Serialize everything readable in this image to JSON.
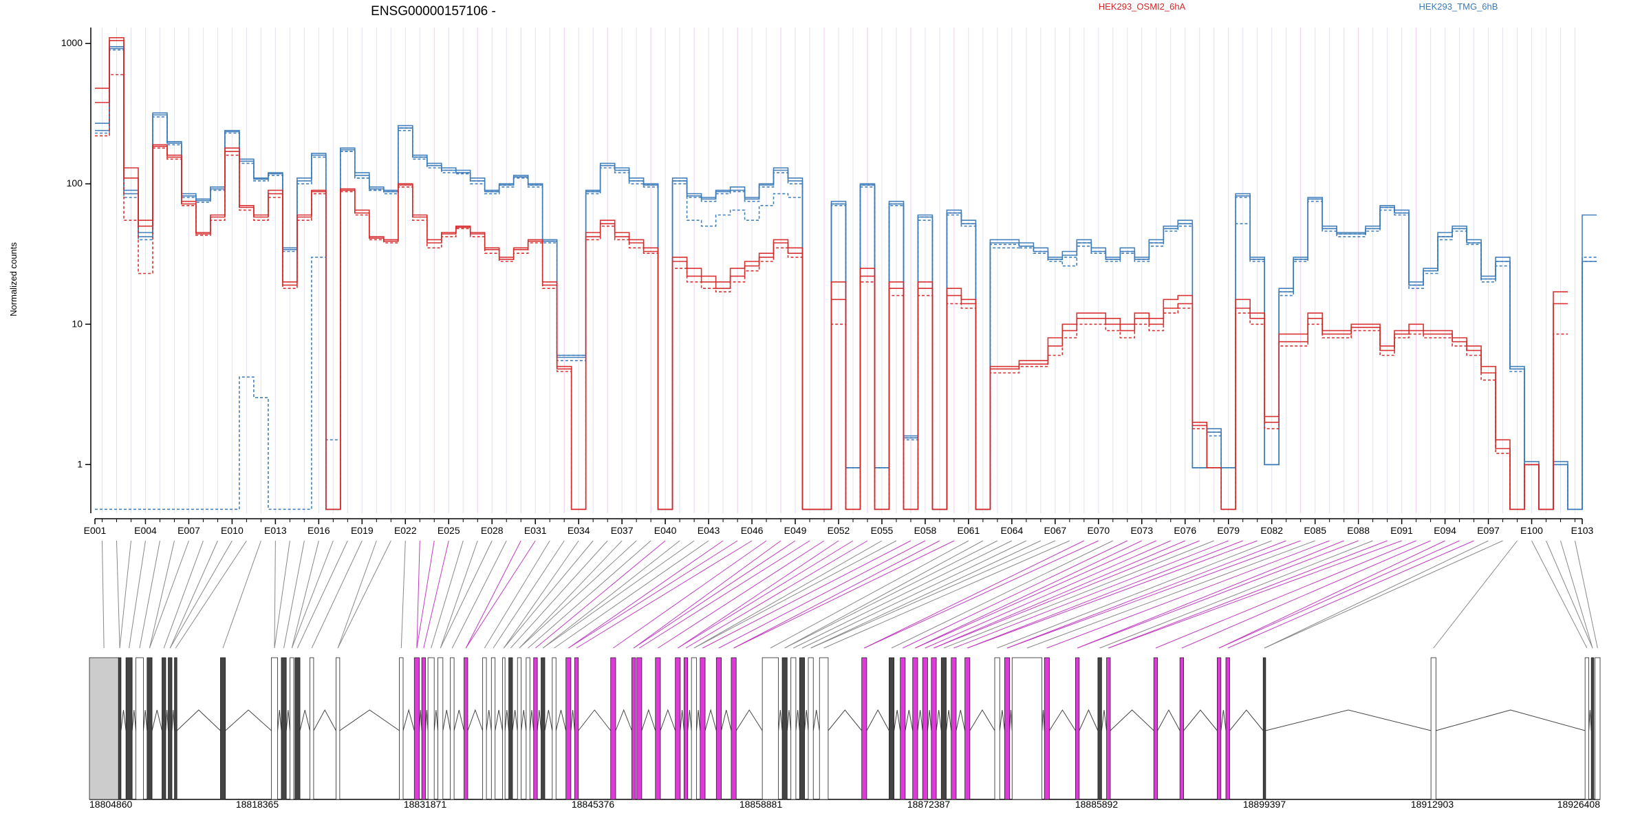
{
  "chart_data": {
    "type": "line",
    "title": "ENSG00000157106 -",
    "ylabel": "Normalized counts",
    "y_scale": "log",
    "ylim": [
      0.45,
      1300
    ],
    "y_ticks": [
      1,
      10,
      100,
      1000
    ],
    "y_tick_labels": [
      "1",
      "10",
      "100",
      "1000"
    ],
    "x_categories_count": 103,
    "x_tick_labels": [
      "E001",
      "E004",
      "E007",
      "E010",
      "E013",
      "E016",
      "E019",
      "E022",
      "E025",
      "E028",
      "E031",
      "E034",
      "E037",
      "E040",
      "E043",
      "E046",
      "E049",
      "E052",
      "E055",
      "E058",
      "E061",
      "E064",
      "E067",
      "E070",
      "E073",
      "E076",
      "E079",
      "E082",
      "E085",
      "E088",
      "E091",
      "E094",
      "E097",
      "E100",
      "E103"
    ],
    "x_tick_exon_index": [
      1,
      4,
      7,
      10,
      13,
      16,
      19,
      22,
      25,
      28,
      31,
      34,
      37,
      40,
      43,
      46,
      49,
      52,
      55,
      58,
      61,
      64,
      67,
      70,
      73,
      76,
      79,
      82,
      85,
      88,
      91,
      94,
      97,
      100,
      103
    ],
    "legend": [
      {
        "name": "HEK293_OSMI2_6hA",
        "color": "#d62728"
      },
      {
        "name": "HEK293_TMG_6hB",
        "color": "#3a7ab8"
      }
    ],
    "series": [
      {
        "group": "HEK293_TMG_6hB",
        "color": "#3a7ab8",
        "values": [
          270,
          950,
          90,
          45,
          320,
          200,
          85,
          78,
          95,
          240,
          150,
          110,
          120,
          35,
          110,
          165,
          0.48,
          180,
          120,
          95,
          90,
          260,
          160,
          140,
          130,
          125,
          110,
          90,
          100,
          115,
          100,
          40,
          6,
          6,
          90,
          140,
          130,
          110,
          100,
          0.48,
          110,
          85,
          80,
          90,
          95,
          80,
          100,
          130,
          110,
          0.48,
          0.48,
          75,
          0.95,
          100,
          0.95,
          75,
          1.6,
          60,
          0.48,
          65,
          55,
          0.48,
          40,
          40,
          38,
          35,
          30,
          33,
          40,
          35,
          30,
          35,
          30,
          40,
          50,
          55,
          0.95,
          1.8,
          0.95,
          85,
          30,
          1.0,
          18,
          30,
          80,
          50,
          45,
          45,
          50,
          70,
          65,
          20,
          25,
          45,
          50,
          40,
          22,
          30,
          5,
          1.05,
          0.48,
          1.05,
          0.48,
          60
        ]
      },
      {
        "group": "HEK293_TMG_6hB",
        "color": "#3a7ab8",
        "values": [
          230,
          900,
          80,
          40,
          300,
          190,
          80,
          74,
          90,
          230,
          140,
          105,
          115,
          33,
          100,
          155,
          0.48,
          170,
          110,
          90,
          85,
          240,
          150,
          130,
          120,
          118,
          100,
          85,
          95,
          110,
          95,
          38,
          5.5,
          5.5,
          85,
          130,
          120,
          100,
          95,
          0.48,
          100,
          80,
          75,
          85,
          88,
          75,
          95,
          120,
          100,
          0.48,
          0.48,
          70,
          0.95,
          95,
          0.95,
          70,
          1.5,
          55,
          0.48,
          60,
          50,
          0.48,
          37,
          37,
          35,
          32,
          28,
          30,
          36,
          32,
          28,
          32,
          28,
          36,
          46,
          50,
          0.95,
          1.6,
          0.95,
          80,
          28,
          1.0,
          16,
          28,
          75,
          46,
          42,
          42,
          46,
          65,
          60,
          18,
          23,
          40,
          46,
          37,
          20,
          26,
          4.6,
          1.0,
          0.48,
          1.0,
          0.48,
          30
        ]
      },
      {
        "group": "HEK293_TMG_6hB",
        "color": "#3a7ab8",
        "values": [
          240,
          920,
          85,
          42,
          310,
          195,
          82,
          76,
          92,
          235,
          145,
          108,
          118,
          34,
          105,
          160,
          0.48,
          175,
          115,
          92,
          88,
          250,
          155,
          135,
          125,
          120,
          105,
          88,
          98,
          112,
          98,
          39,
          5.8,
          5.8,
          88,
          135,
          125,
          105,
          98,
          0.48,
          105,
          82,
          78,
          88,
          90,
          78,
          98,
          125,
          105,
          0.48,
          0.48,
          72,
          0.95,
          98,
          0.95,
          72,
          1.55,
          58,
          0.48,
          62,
          52,
          0.48,
          38,
          38,
          36,
          33,
          29,
          31,
          38,
          33,
          29,
          33,
          29,
          38,
          48,
          52,
          0.95,
          1.7,
          0.95,
          82,
          29,
          1.0,
          17,
          29,
          78,
          48,
          44,
          44,
          48,
          68,
          62,
          19,
          24,
          42,
          48,
          38,
          21,
          28,
          4.8,
          1.0,
          0.48,
          1.0,
          0.48,
          28
        ]
      },
      {
        "group": "HEK293_TMG_6hB",
        "color": "#3a7ab8",
        "values": [
          0.48,
          0.48,
          0.48,
          0.48,
          0.48,
          0.48,
          0.48,
          0.48,
          0.48,
          0.48,
          4.2,
          3.0,
          0.48,
          0.48,
          0.48,
          30,
          1.5,
          170,
          110,
          90,
          88,
          250,
          155,
          135,
          125,
          120,
          105,
          88,
          98,
          112,
          98,
          39,
          6,
          6,
          88,
          135,
          125,
          105,
          98,
          0.48,
          105,
          55,
          50,
          60,
          65,
          55,
          70,
          85,
          80,
          0.48,
          0.48,
          72,
          0.95,
          98,
          0.95,
          72,
          1.55,
          58,
          0.48,
          62,
          52,
          0.48,
          35,
          35,
          36,
          33,
          29,
          26,
          38,
          33,
          29,
          33,
          29,
          38,
          48,
          52,
          0.95,
          1.7,
          0.48,
          52,
          29,
          1.0,
          17,
          29,
          78,
          48,
          44,
          44,
          48,
          68,
          62,
          19,
          24,
          42,
          48,
          38,
          21,
          28,
          4.8,
          1.0,
          0.48,
          1.0,
          0.48,
          28
        ]
      },
      {
        "group": "HEK293_OSMI2_6hA",
        "color": "#d62728",
        "values": [
          480,
          1100,
          130,
          55,
          190,
          160,
          75,
          45,
          60,
          180,
          70,
          60,
          90,
          20,
          60,
          90,
          0.48,
          92,
          65,
          42,
          40,
          100,
          60,
          40,
          45,
          50,
          45,
          35,
          30,
          35,
          40,
          20,
          5,
          0.48,
          45,
          55,
          45,
          40,
          35,
          0.48,
          30,
          25,
          22,
          20,
          25,
          28,
          32,
          40,
          35,
          0.48,
          0.48,
          20,
          0.48,
          25,
          0.48,
          20,
          0.48,
          20,
          0.48,
          18,
          15,
          0.48,
          5,
          5,
          5.5,
          5.5,
          8,
          10,
          12,
          12,
          11,
          10,
          12,
          11,
          15,
          16,
          2,
          0.95,
          0.48,
          15,
          12,
          2.2,
          8.5,
          8.5,
          12,
          9,
          9,
          10,
          10,
          7,
          9,
          10,
          9,
          9,
          8,
          7,
          5,
          1.5,
          0.48,
          1.0,
          0.48,
          17
        ]
      },
      {
        "group": "HEK293_OSMI2_6hA",
        "color": "#d62728",
        "values": [
          220,
          600,
          55,
          23,
          180,
          150,
          70,
          43,
          55,
          160,
          65,
          55,
          80,
          18,
          55,
          85,
          0.48,
          88,
          60,
          40,
          38,
          95,
          55,
          35,
          42,
          48,
          42,
          32,
          28,
          32,
          38,
          18,
          4.6,
          0.48,
          40,
          50,
          40,
          35,
          32,
          0.48,
          25,
          20,
          18,
          17,
          20,
          24,
          28,
          35,
          30,
          0.48,
          0.48,
          10,
          0.48,
          20,
          0.48,
          16,
          0.48,
          16,
          0.48,
          14,
          13,
          0.48,
          4.5,
          4.5,
          5,
          5,
          6,
          8,
          10,
          10,
          9,
          8,
          10,
          9,
          12,
          13,
          1.8,
          0.95,
          0.48,
          12,
          10,
          1.8,
          7,
          7,
          10,
          8,
          8,
          9,
          9,
          6,
          8,
          8.5,
          8,
          8,
          7,
          6,
          4,
          1.2,
          0.48,
          1.0,
          0.48,
          8.5
        ]
      },
      {
        "group": "HEK293_OSMI2_6hA",
        "color": "#d62728",
        "values": [
          380,
          1050,
          110,
          50,
          185,
          155,
          72,
          44,
          58,
          170,
          68,
          58,
          85,
          19,
          58,
          88,
          0.48,
          90,
          62,
          41,
          39,
          98,
          58,
          38,
          44,
          49,
          44,
          34,
          29,
          34,
          39,
          19,
          4.8,
          0.48,
          42,
          52,
          42,
          38,
          33,
          0.48,
          28,
          22,
          20,
          18,
          22,
          26,
          30,
          38,
          32,
          0.48,
          0.48,
          15,
          0.48,
          22,
          0.48,
          18,
          0.48,
          18,
          0.48,
          16,
          14,
          0.48,
          4.8,
          4.8,
          5.2,
          5.2,
          7,
          9,
          11,
          11,
          10,
          9,
          11,
          10,
          13,
          14,
          1.9,
          0.95,
          0.48,
          13,
          11,
          2.0,
          7.5,
          7.5,
          11,
          8.5,
          8.5,
          9.5,
          9.5,
          6.5,
          8.5,
          9,
          8.5,
          8.5,
          7.5,
          6.5,
          4.5,
          1.3,
          0.48,
          1.0,
          0.48,
          14
        ]
      }
    ]
  },
  "gene_model": {
    "coordinate_labels": [
      "18804860",
      "18818365",
      "18831871",
      "18845376",
      "18858881",
      "18872387",
      "18885892",
      "18899397",
      "18912903",
      "18926408"
    ],
    "coord_start": 18804860,
    "coord_end": 18926408,
    "exons": [
      [
        18804860,
        18807200,
        "grey"
      ],
      [
        18807200,
        18807400,
        "black"
      ],
      [
        18807800,
        18808300,
        "black"
      ],
      [
        18808600,
        18809200,
        "white"
      ],
      [
        18809500,
        18809900,
        "black"
      ],
      [
        18810700,
        18811000,
        "black"
      ],
      [
        18811200,
        18811500,
        "black"
      ],
      [
        18811700,
        18811900,
        "black"
      ],
      [
        18815400,
        18815800,
        "black"
      ],
      [
        18819500,
        18820000,
        "white"
      ],
      [
        18820300,
        18820700,
        "black"
      ],
      [
        18821000,
        18821300,
        "white"
      ],
      [
        18821400,
        18821800,
        "black"
      ],
      [
        18822600,
        18822900,
        "white"
      ],
      [
        18824700,
        18825000,
        "white"
      ],
      [
        18829800,
        18830100,
        "white"
      ],
      [
        18831000,
        18831400,
        "pink"
      ],
      [
        18831600,
        18831900,
        "pink"
      ],
      [
        18832100,
        18832600,
        "white"
      ],
      [
        18832900,
        18833300,
        "white"
      ],
      [
        18833900,
        18834200,
        "white"
      ],
      [
        18835000,
        18835300,
        "pink"
      ],
      [
        18836500,
        18836800,
        "white"
      ],
      [
        18837200,
        18837500,
        "white"
      ],
      [
        18838100,
        18838300,
        "white"
      ],
      [
        18838600,
        18838900,
        "black"
      ],
      [
        18839300,
        18839600,
        "white"
      ],
      [
        18840000,
        18840300,
        "white"
      ],
      [
        18840600,
        18840900,
        "pink"
      ],
      [
        18841200,
        18841500,
        "black"
      ],
      [
        18842100,
        18842400,
        "white"
      ],
      [
        18843200,
        18843600,
        "pink"
      ],
      [
        18843900,
        18844200,
        "pink"
      ],
      [
        18846800,
        18847200,
        "pink"
      ],
      [
        18848500,
        18848800,
        "pink"
      ],
      [
        18848900,
        18849300,
        "pink"
      ],
      [
        18850400,
        18850800,
        "pink"
      ],
      [
        18852000,
        18852400,
        "pink"
      ],
      [
        18852700,
        18853000,
        "pink"
      ],
      [
        18853300,
        18853700,
        "white"
      ],
      [
        18854000,
        18854400,
        "pink"
      ],
      [
        18855300,
        18855700,
        "pink"
      ],
      [
        18856500,
        18856900,
        "pink"
      ],
      [
        18859000,
        18860300,
        "white"
      ],
      [
        18860600,
        18861000,
        "black"
      ],
      [
        18861300,
        18861700,
        "white"
      ],
      [
        18862000,
        18862400,
        "black"
      ],
      [
        18862700,
        18863100,
        "white"
      ],
      [
        18863600,
        18864300,
        "white"
      ],
      [
        18867000,
        18867400,
        "pink"
      ],
      [
        18869200,
        18869600,
        "black"
      ],
      [
        18870100,
        18870500,
        "pink"
      ],
      [
        18871100,
        18871500,
        "pink"
      ],
      [
        18871900,
        18872300,
        "pink"
      ],
      [
        18872600,
        18873000,
        "pink"
      ],
      [
        18873400,
        18873800,
        "black"
      ],
      [
        18874200,
        18874600,
        "pink"
      ],
      [
        18875300,
        18875700,
        "pink"
      ],
      [
        18877700,
        18878100,
        "white"
      ],
      [
        18878500,
        18878900,
        "pink"
      ],
      [
        18879100,
        18881500,
        "white"
      ],
      [
        18881700,
        18882100,
        "pink"
      ],
      [
        18884200,
        18884500,
        "pink"
      ],
      [
        18886000,
        18886300,
        "black"
      ],
      [
        18886700,
        18887000,
        "pink"
      ],
      [
        18890500,
        18890800,
        "pink"
      ],
      [
        18892600,
        18892900,
        "pink"
      ],
      [
        18895600,
        18895900,
        "pink"
      ],
      [
        18896300,
        18896600,
        "pink"
      ],
      [
        18899300,
        18899500,
        "black"
      ],
      [
        18912800,
        18913200,
        "white"
      ],
      [
        18925200,
        18925500,
        "white"
      ],
      [
        18925700,
        18925900,
        "black"
      ],
      [
        18926000,
        18926408,
        "white"
      ]
    ]
  },
  "colors": {
    "accent_red": "#d62728",
    "accent_blue": "#3a7ab8",
    "highlight": "#dd3ad9",
    "grey": "#cccccc"
  }
}
